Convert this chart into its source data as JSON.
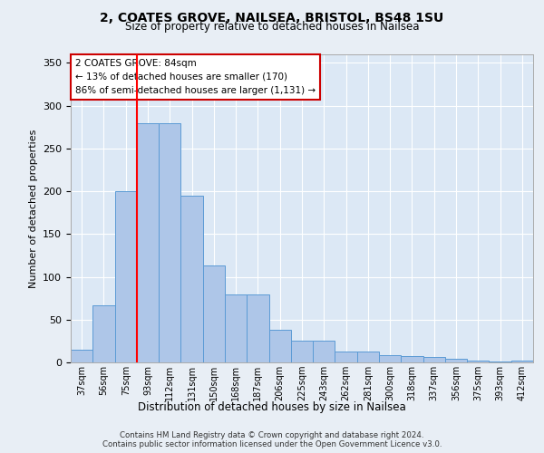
{
  "title1": "2, COATES GROVE, NAILSEA, BRISTOL, BS48 1SU",
  "title2": "Size of property relative to detached houses in Nailsea",
  "xlabel": "Distribution of detached houses by size in Nailsea",
  "ylabel": "Number of detached properties",
  "categories": [
    "37sqm",
    "56sqm",
    "75sqm",
    "93sqm",
    "112sqm",
    "131sqm",
    "150sqm",
    "168sqm",
    "187sqm",
    "206sqm",
    "225sqm",
    "243sqm",
    "262sqm",
    "281sqm",
    "300sqm",
    "318sqm",
    "337sqm",
    "356sqm",
    "375sqm",
    "393sqm",
    "412sqm"
  ],
  "values": [
    15,
    67,
    200,
    280,
    280,
    195,
    113,
    79,
    79,
    38,
    25,
    25,
    13,
    13,
    8,
    7,
    6,
    4,
    2,
    1,
    2
  ],
  "bar_color": "#aec6e8",
  "bar_edge_color": "#5b9bd5",
  "red_line_x": 2.5,
  "annotation_text": "2 COATES GROVE: 84sqm\n← 13% of detached houses are smaller (170)\n86% of semi-detached houses are larger (1,131) →",
  "annotation_box_color": "#ffffff",
  "annotation_box_edge": "#cc0000",
  "footer1": "Contains HM Land Registry data © Crown copyright and database right 2024.",
  "footer2": "Contains public sector information licensed under the Open Government Licence v3.0.",
  "ylim": [
    0,
    360
  ],
  "yticks": [
    0,
    50,
    100,
    150,
    200,
    250,
    300,
    350
  ],
  "fig_bg": "#e8eef5",
  "plot_bg": "#dce8f5"
}
